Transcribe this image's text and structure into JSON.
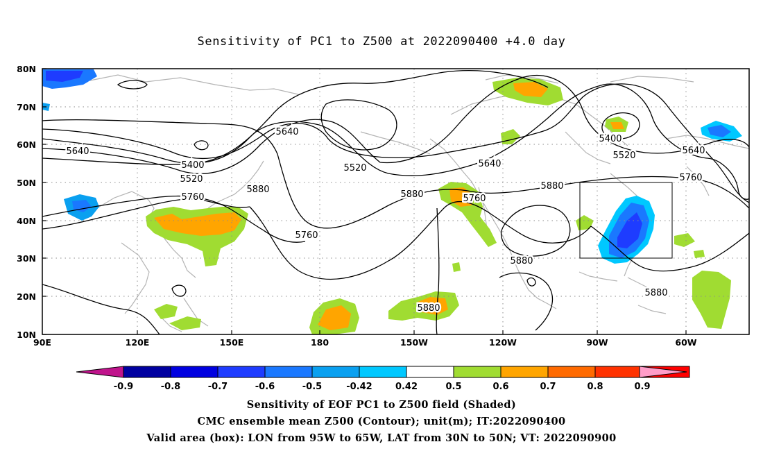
{
  "title": "Sensitivity of PC1 to Z500 at 2022090400 +4.0 day",
  "map": {
    "lat_labels": [
      "80N",
      "70N",
      "60N",
      "50N",
      "40N",
      "30N",
      "20N",
      "10N"
    ],
    "lon_labels": [
      "90E",
      "120E",
      "150E",
      "180",
      "150W",
      "120W",
      "90W",
      "60W"
    ],
    "contour_labels": [
      "5640",
      "5400",
      "5520",
      "5760",
      "5880",
      "5640",
      "5520",
      "5640",
      "5880",
      "5760",
      "5760",
      "5880",
      "5880",
      "5400",
      "5520",
      "5640",
      "5760",
      "5880",
      "5880"
    ],
    "valid_box": {
      "lon_min": -95,
      "lon_max": -65,
      "lat_min": 30,
      "lat_max": 50
    }
  },
  "colorbar": {
    "labels": [
      "-0.9",
      "-0.8",
      "-0.7",
      "-0.6",
      "-0.5",
      "-0.42",
      "0.42",
      "0.5",
      "0.6",
      "0.7",
      "0.8",
      "0.9"
    ],
    "colors": [
      "#0000a0",
      "#0000e0",
      "#1e3cff",
      "#1a78ff",
      "#0aa0f0",
      "#00c8ff",
      "#ffffff",
      "#a0dc32",
      "#ffa500",
      "#ff6a00",
      "#ff3200",
      "#ff0000"
    ],
    "low_arrow_color": "#c0148c",
    "high_arrow_color": "#ff9cc8"
  },
  "captions": {
    "line1": "Sensitivity of EOF PC1 to Z500 field (Shaded)",
    "line2": "CMC ensemble mean Z500 (Contour); unit(m); IT:2022090400",
    "line3": "Valid area (box): LON from 95W to 65W, LAT from 30N to 50N; VT: 2022090900"
  }
}
